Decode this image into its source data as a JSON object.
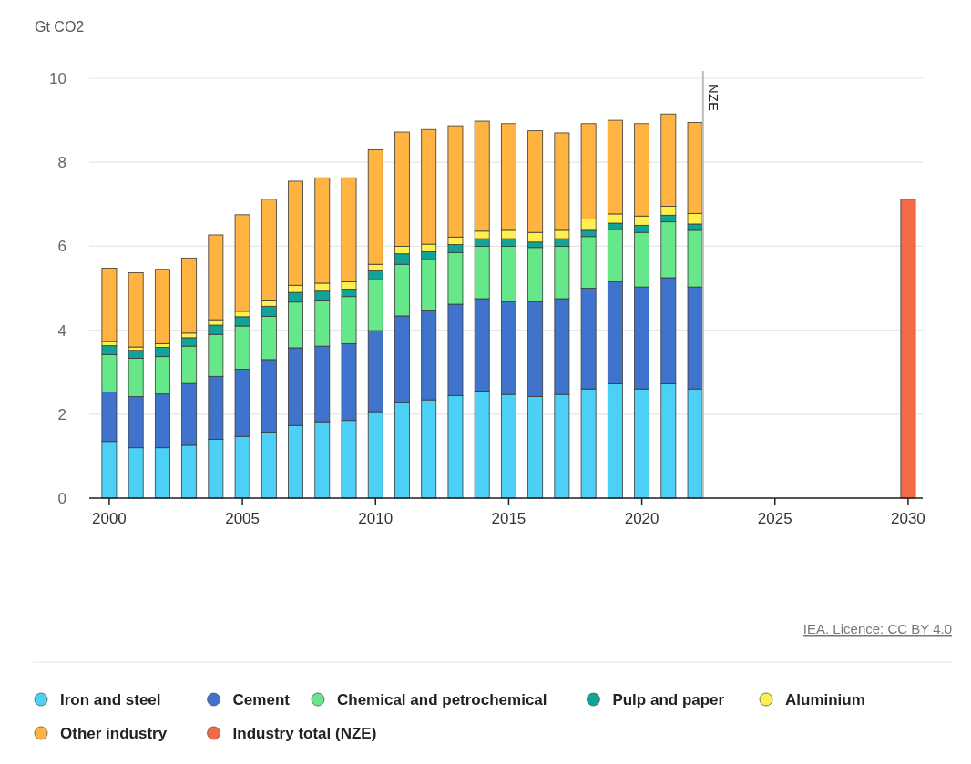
{
  "chart_data": {
    "type": "bar",
    "stacked": true,
    "ylabel": "Gt CO2",
    "xlim": [
      1999.25,
      2030.55
    ],
    "xticks": [
      2000,
      2005,
      2010,
      2015,
      2020,
      2025,
      2030
    ],
    "ylim": [
      0,
      10
    ],
    "yticks": [
      0,
      2,
      4,
      6,
      8,
      10
    ],
    "grid": "y",
    "legend": "bottom",
    "marker": "circle",
    "x": [
      2000,
      2001,
      2002,
      2003,
      2004,
      2005,
      2006,
      2007,
      2008,
      2009,
      2010,
      2011,
      2012,
      2013,
      2014,
      2015,
      2016,
      2017,
      2018,
      2019,
      2020,
      2021,
      2022,
      2030
    ],
    "series": [
      {
        "name": "Iron and steel",
        "color": "#4dd0f5",
        "values": [
          1.35,
          1.2,
          1.2,
          1.26,
          1.4,
          1.47,
          1.57,
          1.73,
          1.82,
          1.85,
          2.06,
          2.27,
          2.34,
          2.44,
          2.55,
          2.47,
          2.42,
          2.47,
          2.6,
          2.72,
          2.6,
          2.72,
          2.6,
          null
        ]
      },
      {
        "name": "Cement",
        "color": "#3f73cc",
        "values": [
          1.18,
          1.22,
          1.28,
          1.47,
          1.5,
          1.6,
          1.73,
          1.85,
          1.8,
          1.83,
          1.93,
          2.07,
          2.14,
          2.18,
          2.2,
          2.21,
          2.26,
          2.28,
          2.4,
          2.43,
          2.43,
          2.53,
          2.43,
          null
        ]
      },
      {
        "name": "Chemical and petrochemical",
        "color": "#66e88a",
        "values": [
          0.89,
          0.91,
          0.89,
          0.89,
          1.0,
          1.03,
          1.03,
          1.09,
          1.1,
          1.12,
          1.21,
          1.23,
          1.2,
          1.23,
          1.25,
          1.32,
          1.29,
          1.25,
          1.23,
          1.25,
          1.3,
          1.33,
          1.35,
          null
        ]
      },
      {
        "name": "Pulp and paper",
        "color": "#11a398",
        "values": [
          0.21,
          0.19,
          0.22,
          0.2,
          0.22,
          0.22,
          0.24,
          0.23,
          0.21,
          0.18,
          0.21,
          0.25,
          0.19,
          0.19,
          0.18,
          0.18,
          0.13,
          0.18,
          0.15,
          0.15,
          0.17,
          0.16,
          0.15,
          null
        ]
      },
      {
        "name": "Aluminium",
        "color": "#fff04d",
        "values": [
          0.1,
          0.08,
          0.09,
          0.11,
          0.13,
          0.13,
          0.15,
          0.17,
          0.19,
          0.17,
          0.16,
          0.18,
          0.18,
          0.18,
          0.18,
          0.2,
          0.23,
          0.2,
          0.27,
          0.22,
          0.22,
          0.21,
          0.25,
          null
        ]
      },
      {
        "name": "Other industry",
        "color": "#ffb340",
        "values": [
          1.75,
          1.77,
          1.77,
          1.79,
          2.02,
          2.3,
          2.4,
          2.48,
          2.51,
          2.48,
          2.73,
          2.72,
          2.73,
          2.65,
          2.62,
          2.54,
          2.42,
          2.32,
          2.27,
          2.23,
          2.2,
          2.2,
          2.17,
          null
        ]
      },
      {
        "name": "Industry total (NZE)",
        "color": "#f46a46",
        "values": [
          null,
          null,
          null,
          null,
          null,
          null,
          null,
          null,
          null,
          null,
          null,
          null,
          null,
          null,
          null,
          null,
          null,
          null,
          null,
          null,
          null,
          null,
          null,
          7.12
        ]
      }
    ],
    "ref_lines": [
      {
        "axis": "x",
        "value": 2022.3,
        "label": "NZE",
        "color": "#bbbbbb"
      }
    ],
    "annotations": [
      "IEA. Licence: CC BY 4.0"
    ]
  }
}
